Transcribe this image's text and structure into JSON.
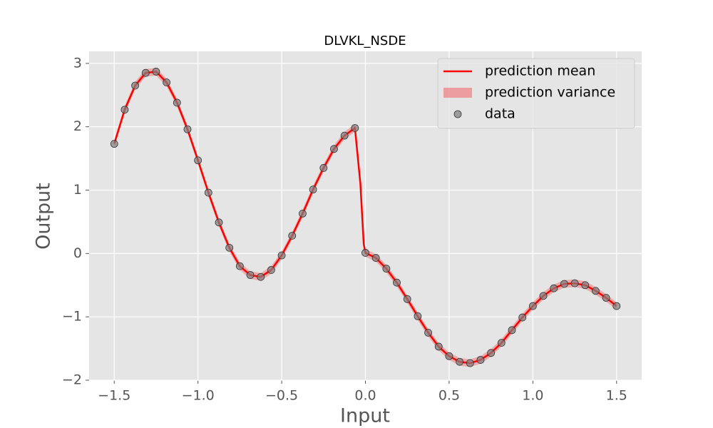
{
  "chart_data": {
    "type": "line",
    "title": "DLVKL_NSDE",
    "xlabel": "Input",
    "ylabel": "Output",
    "xlim": [
      -1.65,
      1.65
    ],
    "ylim": [
      -2,
      3.19
    ],
    "xticks": [
      {
        "value": -1.5,
        "label": "−1.5"
      },
      {
        "value": -1,
        "label": "−1.0"
      },
      {
        "value": -0.5,
        "label": "−0.5"
      },
      {
        "value": 0,
        "label": "0.0"
      },
      {
        "value": 0.5,
        "label": "0.5"
      },
      {
        "value": 1,
        "label": "1.0"
      },
      {
        "value": 1.5,
        "label": "1.5"
      }
    ],
    "yticks": [
      {
        "value": -2,
        "label": "−2"
      },
      {
        "value": -1,
        "label": "−1"
      },
      0,
      1,
      2,
      3
    ],
    "grid": true,
    "legend": "upper right",
    "series": [
      {
        "name": "prediction mean",
        "kind": "line",
        "color": "#ff0000",
        "x": [
          -1.5,
          -1.4375,
          -1.375,
          -1.3125,
          -1.25,
          -1.1875,
          -1.125,
          -1.0625,
          -1.0,
          -0.9375,
          -0.875,
          -0.8125,
          -0.75,
          -0.6875,
          -0.625,
          -0.5625,
          -0.5,
          -0.4375,
          -0.375,
          -0.3125,
          -0.25,
          -0.1875,
          -0.125,
          -0.0625,
          -0.03,
          -0.01,
          0,
          0.0625,
          0.125,
          0.1875,
          0.25,
          0.3125,
          0.375,
          0.4375,
          0.5,
          0.5625,
          0.625,
          0.6875,
          0.75,
          0.8125,
          0.875,
          0.9375,
          1.0,
          1.0625,
          1.125,
          1.1875,
          1.25,
          1.3125,
          1.375,
          1.4375,
          1.5
        ],
        "values": [
          1.73,
          2.27,
          2.65,
          2.85,
          2.87,
          2.7,
          2.38,
          1.96,
          1.47,
          0.96,
          0.49,
          0.09,
          -0.2,
          -0.34,
          -0.37,
          -0.26,
          -0.03,
          0.28,
          0.63,
          1.01,
          1.35,
          1.65,
          1.86,
          1.98,
          1.1,
          0.15,
          0.01,
          -0.07,
          -0.24,
          -0.46,
          -0.72,
          -0.99,
          -1.25,
          -1.47,
          -1.62,
          -1.71,
          -1.73,
          -1.68,
          -1.57,
          -1.41,
          -1.21,
          -1.01,
          -0.83,
          -0.67,
          -0.55,
          -0.48,
          -0.47,
          -0.5,
          -0.59,
          -0.7,
          -0.83
        ]
      },
      {
        "name": "prediction variance",
        "kind": "band",
        "color": "#f08080",
        "lower": [
          1.67,
          2.21,
          2.59,
          2.79,
          2.81,
          2.64,
          2.32,
          1.9,
          1.41,
          0.9,
          0.43,
          0.03,
          -0.26,
          -0.4,
          -0.43,
          -0.32,
          -0.09,
          0.22,
          0.57,
          0.95,
          1.29,
          1.59,
          1.8,
          1.92,
          1.04,
          0.09,
          -0.05,
          -0.13,
          -0.3,
          -0.52,
          -0.78,
          -1.05,
          -1.31,
          -1.53,
          -1.68,
          -1.77,
          -1.79,
          -1.74,
          -1.63,
          -1.47,
          -1.27,
          -1.07,
          -0.89,
          -0.73,
          -0.61,
          -0.54,
          -0.53,
          -0.56,
          -0.65,
          -0.76,
          -0.89
        ],
        "upper": [
          1.79,
          2.33,
          2.71,
          2.91,
          2.93,
          2.76,
          2.44,
          2.02,
          1.53,
          1.02,
          0.55,
          0.15,
          -0.14,
          -0.28,
          -0.31,
          -0.2,
          0.03,
          0.34,
          0.69,
          1.07,
          1.41,
          1.71,
          1.92,
          2.04,
          1.16,
          0.21,
          0.07,
          -0.01,
          -0.18,
          -0.4,
          -0.66,
          -0.93,
          -1.19,
          -1.41,
          -1.56,
          -1.65,
          -1.67,
          -1.62,
          -1.51,
          -1.35,
          -1.15,
          -0.95,
          -0.77,
          -0.61,
          -0.49,
          -0.42,
          -0.41,
          -0.44,
          -0.53,
          -0.64,
          -0.77
        ]
      },
      {
        "name": "data",
        "kind": "scatter",
        "color": "#808080",
        "x": [
          -1.5,
          -1.4375,
          -1.375,
          -1.3125,
          -1.25,
          -1.1875,
          -1.125,
          -1.0625,
          -1.0,
          -0.9375,
          -0.875,
          -0.8125,
          -0.75,
          -0.6875,
          -0.625,
          -0.5625,
          -0.5,
          -0.4375,
          -0.375,
          -0.3125,
          -0.25,
          -0.1875,
          -0.125,
          -0.0625,
          0,
          0.0625,
          0.125,
          0.1875,
          0.25,
          0.3125,
          0.375,
          0.4375,
          0.5,
          0.5625,
          0.625,
          0.6875,
          0.75,
          0.8125,
          0.875,
          0.9375,
          1.0,
          1.0625,
          1.125,
          1.1875,
          1.25,
          1.3125,
          1.375,
          1.4375,
          1.5
        ],
        "values": [
          1.73,
          2.27,
          2.65,
          2.85,
          2.87,
          2.7,
          2.38,
          1.96,
          1.47,
          0.96,
          0.49,
          0.09,
          -0.2,
          -0.34,
          -0.37,
          -0.26,
          -0.03,
          0.28,
          0.63,
          1.01,
          1.35,
          1.65,
          1.86,
          1.98,
          0.01,
          -0.07,
          -0.24,
          -0.46,
          -0.72,
          -0.99,
          -1.25,
          -1.47,
          -1.62,
          -1.71,
          -1.73,
          -1.68,
          -1.57,
          -1.41,
          -1.21,
          -1.01,
          -0.83,
          -0.67,
          -0.55,
          -0.48,
          -0.47,
          -0.5,
          -0.59,
          -0.7,
          -0.83
        ]
      }
    ]
  }
}
